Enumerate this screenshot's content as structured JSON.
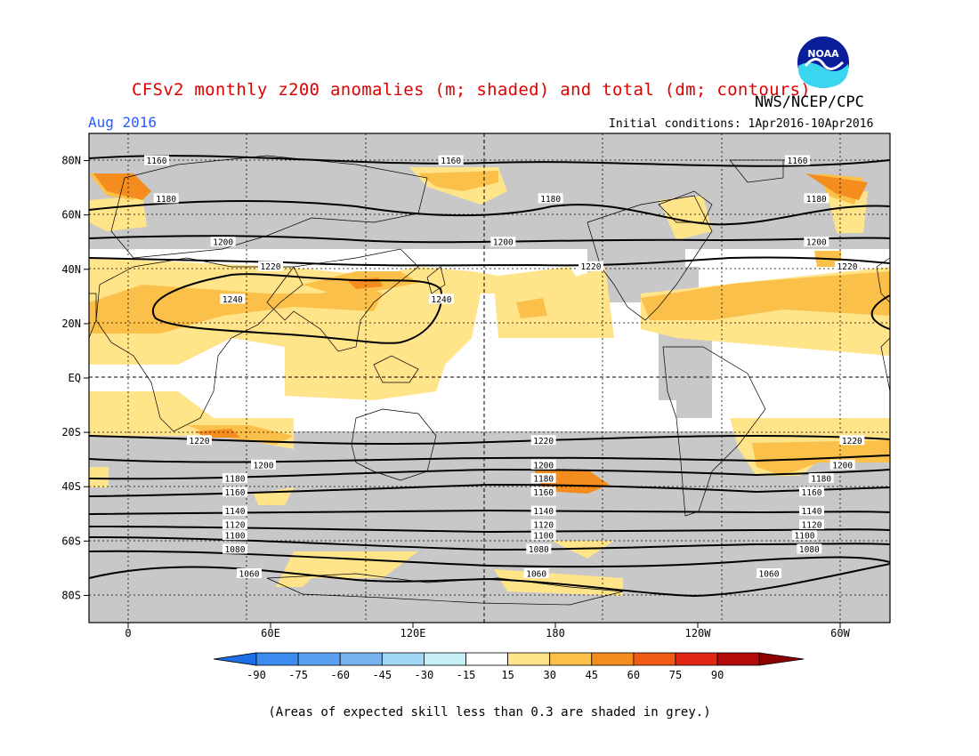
{
  "title": "CFSv2 monthly z200 anomalies (m; shaded) and total (dm; contours)",
  "org": "NWS/NCEP/CPC",
  "month_label": "Aug 2016",
  "initial_conditions": "Initial conditions: 1Apr2016-10Apr2016",
  "footnote": "(Areas of expected skill less than 0.3 are shaded in grey.)",
  "logo_text": "NOAA",
  "map": {
    "lat_ticks": [
      "80N",
      "60N",
      "40N",
      "20N",
      "EQ",
      "20S",
      "40S",
      "60S",
      "80S"
    ],
    "lon_ticks": [
      "0",
      "60E",
      "120E",
      "180",
      "120W",
      "60W",
      "0"
    ],
    "contours": [
      {
        "value": "1160",
        "lat": 80,
        "labels_lon": [
          12,
          136,
          282
        ]
      },
      {
        "value": "1180",
        "lat": 66,
        "labels_lon": [
          16,
          178,
          290
        ]
      },
      {
        "value": "1200",
        "lat": 50,
        "labels_lon": [
          40,
          158,
          290
        ]
      },
      {
        "value": "1220",
        "lat": 41,
        "labels_lon": [
          60,
          195,
          303
        ]
      },
      {
        "value": "1240",
        "lat": 29,
        "labels_lon": [
          44,
          132
        ]
      },
      {
        "value": "1220",
        "lat": -23,
        "labels_lon": [
          30,
          175,
          305
        ]
      },
      {
        "value": "1200",
        "lat": -32,
        "labels_lon": [
          57,
          175,
          301
        ]
      },
      {
        "value": "1180",
        "lat": -37,
        "labels_lon": [
          45,
          175,
          292
        ]
      },
      {
        "value": "1160",
        "lat": -42,
        "labels_lon": [
          45,
          175,
          288
        ]
      },
      {
        "value": "1140",
        "lat": -49,
        "labels_lon": [
          45,
          175,
          288
        ]
      },
      {
        "value": "1120",
        "lat": -54,
        "labels_lon": [
          45,
          175,
          288
        ]
      },
      {
        "value": "1100",
        "lat": -58,
        "labels_lon": [
          45,
          175,
          285
        ]
      },
      {
        "value": "1080",
        "lat": -63,
        "labels_lon": [
          45,
          173,
          287
        ]
      },
      {
        "value": "1060",
        "lat": -72,
        "labels_lon": [
          51,
          172,
          270
        ]
      }
    ]
  },
  "colorbar": {
    "labels": [
      "-90",
      "-75",
      "-60",
      "-45",
      "-30",
      "-15",
      "15",
      "30",
      "45",
      "60",
      "75",
      "90"
    ],
    "colors": [
      "#1e6ee6",
      "#3c8cf0",
      "#5aa0f0",
      "#78b4f0",
      "#9fd7f5",
      "#c7f0f5",
      "#ffffff",
      "#ffe48a",
      "#fbc04a",
      "#f58c1e",
      "#f05a14",
      "#e02814",
      "#b40a0a",
      "#8c0000"
    ]
  },
  "colors": {
    "skill_grey": "#c8c8c8",
    "ocean_white": "#ffffff"
  }
}
